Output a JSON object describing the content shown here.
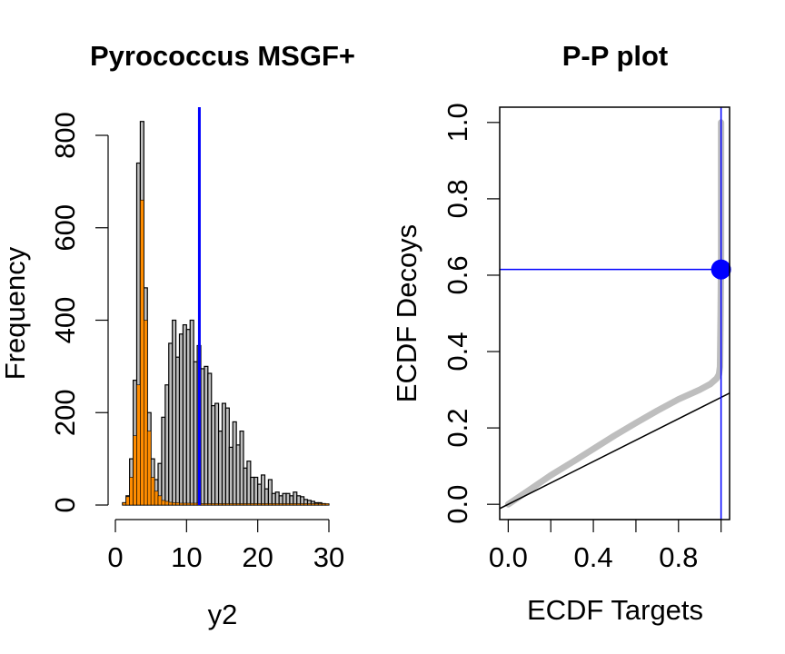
{
  "chart_data": [
    {
      "type": "bar",
      "title": "Pyrococcus MSGF+",
      "xlabel": "y2",
      "ylabel": "Frequency",
      "xlim": [
        0,
        30
      ],
      "ylim": [
        0,
        830
      ],
      "xticks": [
        0,
        10,
        20,
        30
      ],
      "yticks": [
        0,
        200,
        400,
        600,
        800
      ],
      "bin_width": 0.5,
      "x_start": 1.0,
      "series": [
        {
          "fill": "#bebebe",
          "values": [
            5,
            20,
            100,
            270,
            740,
            830,
            470,
            200,
            100,
            55,
            90,
            190,
            260,
            350,
            400,
            320,
            370,
            390,
            380,
            400,
            310,
            345,
            295,
            300,
            285,
            215,
            220,
            160,
            220,
            210,
            125,
            180,
            130,
            160,
            80,
            95,
            60,
            60,
            45,
            65,
            35,
            55,
            25,
            28,
            20,
            25,
            25,
            20,
            28,
            20,
            18,
            12,
            10,
            8,
            5,
            5,
            3,
            2
          ]
        },
        {
          "fill": "#ff8c00",
          "values": [
            5,
            18,
            60,
            150,
            260,
            660,
            400,
            160,
            60,
            30,
            20,
            10,
            8,
            6,
            5,
            5,
            4,
            4,
            4,
            4,
            4,
            4,
            3,
            3,
            3,
            3,
            3,
            3,
            3,
            3,
            3,
            3,
            3,
            3,
            3,
            3,
            3,
            3,
            3,
            3,
            3,
            3,
            3,
            3,
            3,
            3,
            3,
            3,
            3,
            3,
            3,
            3,
            3,
            3,
            3,
            3,
            3,
            3
          ]
        }
      ],
      "vline": {
        "x": 11.8,
        "color": "#0000ff"
      }
    },
    {
      "type": "scatter",
      "title": "P-P plot",
      "xlabel": "ECDF Targets",
      "ylabel": "ECDF Decoys",
      "xlim": [
        -0.04,
        1.04
      ],
      "ylim": [
        -0.04,
        1.04
      ],
      "xticks": [
        0.0,
        0.4,
        0.8
      ],
      "xtick_labels": [
        "0.0",
        "0.4",
        "0.8"
      ],
      "yticks": [
        0.0,
        0.2,
        0.4,
        0.6,
        0.8,
        1.0
      ],
      "ytick_labels": [
        "0.0",
        "0.2",
        "0.4",
        "0.6",
        "0.8",
        "1.0"
      ],
      "points_color": "#bebebe",
      "curve": [
        [
          0.0,
          0.0
        ],
        [
          0.1,
          0.038
        ],
        [
          0.2,
          0.076
        ],
        [
          0.3,
          0.11
        ],
        [
          0.4,
          0.145
        ],
        [
          0.5,
          0.18
        ],
        [
          0.6,
          0.213
        ],
        [
          0.7,
          0.245
        ],
        [
          0.8,
          0.275
        ],
        [
          0.9,
          0.3
        ],
        [
          0.95,
          0.315
        ],
        [
          0.98,
          0.33
        ],
        [
          0.99,
          0.34
        ],
        [
          0.995,
          0.36
        ],
        [
          0.998,
          0.5
        ],
        [
          1.0,
          0.65
        ],
        [
          1.0,
          0.8
        ],
        [
          1.0,
          1.0
        ]
      ],
      "diagonal": {
        "slope": 0.28,
        "intercept": 0.0,
        "color": "#000000"
      },
      "hline": {
        "y": 0.615,
        "color": "#0000ff"
      },
      "vline": {
        "x": 1.0,
        "color": "#0000ff"
      },
      "highlight": {
        "x": 1.0,
        "y": 0.615,
        "color": "#0000ff"
      }
    }
  ]
}
